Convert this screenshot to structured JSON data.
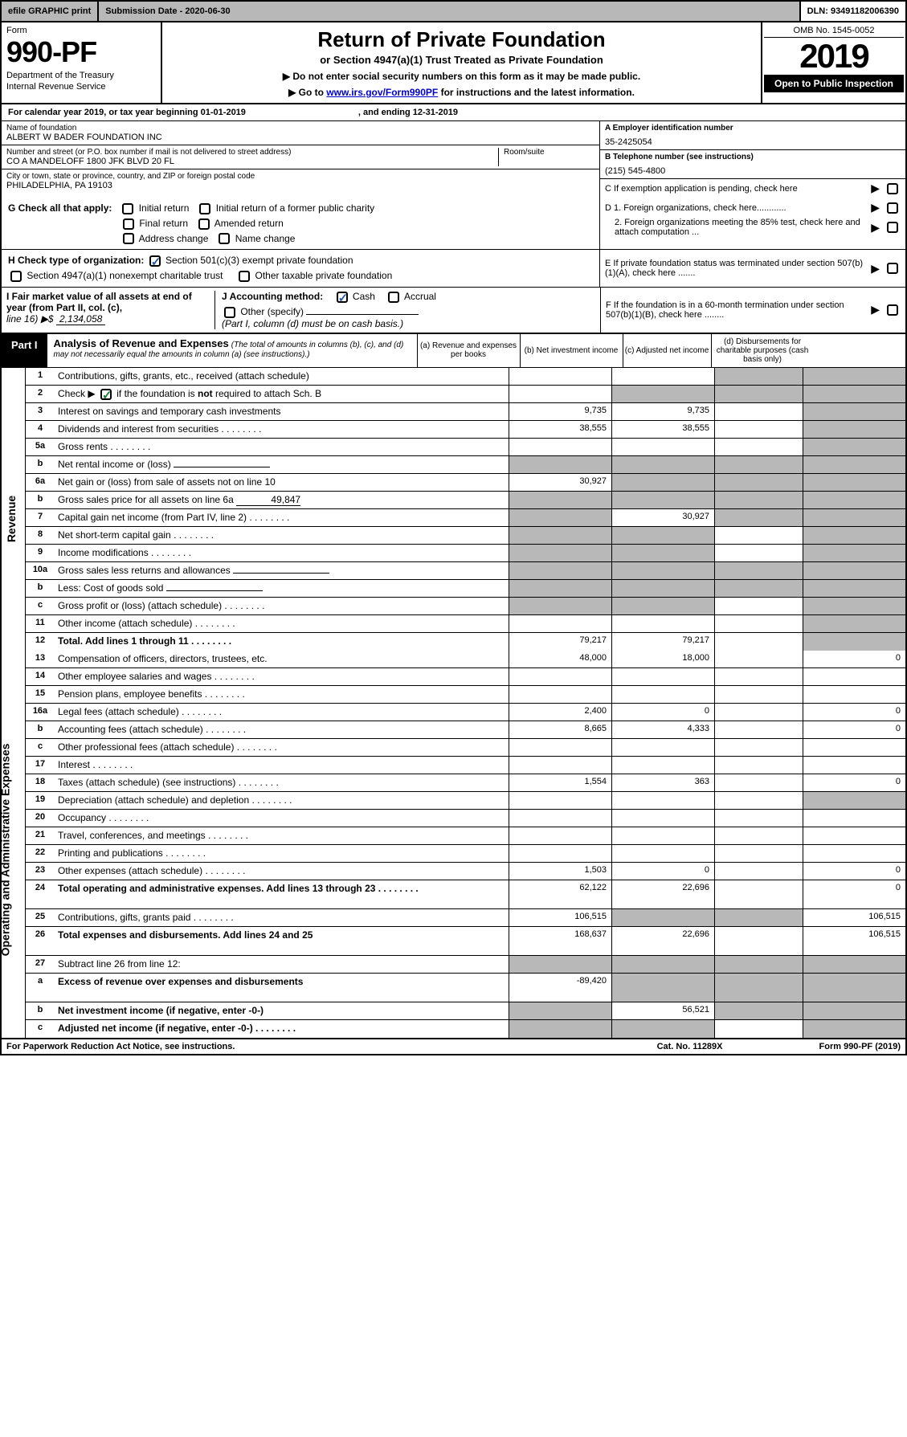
{
  "topbar": {
    "graphic": "efile GRAPHIC print",
    "submission": "Submission Date - 2020-06-30",
    "dln": "DLN: 93491182006390"
  },
  "header": {
    "form_word": "Form",
    "form_number": "990-PF",
    "dept1": "Department of the Treasury",
    "dept2": "Internal Revenue Service",
    "title": "Return of Private Foundation",
    "subtitle": "or Section 4947(a)(1) Trust Treated as Private Foundation",
    "note1": "▶ Do not enter social security numbers on this form as it may be made public.",
    "note2_pre": "▶ Go to ",
    "note2_link": "www.irs.gov/Form990PF",
    "note2_post": " for instructions and the latest information.",
    "omb": "OMB No. 1545-0052",
    "year": "2019",
    "open": "Open to Public Inspection"
  },
  "calendar": {
    "text": "For calendar year 2019, or tax year beginning 01-01-2019",
    "ending": ", and ending 12-31-2019"
  },
  "info": {
    "name_label": "Name of foundation",
    "name": "ALBERT W BADER FOUNDATION INC",
    "addr_label": "Number and street (or P.O. box number if mail is not delivered to street address)",
    "addr": "CO A MANDELOFF 1800 JFK BLVD 20 FL",
    "room_label": "Room/suite",
    "city_label": "City or town, state or province, country, and ZIP or foreign postal code",
    "city": "PHILADELPHIA, PA  19103",
    "a_label": "A Employer identification number",
    "a_val": "35-2425054",
    "b_label": "B Telephone number (see instructions)",
    "b_val": "(215) 545-4800",
    "c_label": "C If exemption application is pending, check here",
    "d1": "D 1. Foreign organizations, check here............",
    "d2": "2. Foreign organizations meeting the 85% test, check here and attach computation ...",
    "e_label": "E  If private foundation status was terminated under section 507(b)(1)(A), check here .......",
    "f_label": "F  If the foundation is in a 60-month termination under section 507(b)(1)(B), check here ........"
  },
  "g": {
    "label": "G Check all that apply:",
    "opt1": "Initial return",
    "opt2": "Initial return of a former public charity",
    "opt3": "Final return",
    "opt4": "Amended return",
    "opt5": "Address change",
    "opt6": "Name change"
  },
  "h": {
    "label": "H Check type of organization:",
    "opt1": "Section 501(c)(3) exempt private foundation",
    "opt2": "Section 4947(a)(1) nonexempt charitable trust",
    "opt3": "Other taxable private foundation"
  },
  "i": {
    "label": "I Fair market value of all assets at end of year (from Part II, col. (c),",
    "line": "line 16) ▶$",
    "val": "2,134,058"
  },
  "j": {
    "label": "J Accounting method:",
    "cash": "Cash",
    "accrual": "Accrual",
    "other": "Other (specify)",
    "note": "(Part I, column (d) must be on cash basis.)"
  },
  "part1": {
    "label": "Part I",
    "title": "Analysis of Revenue and Expenses",
    "desc": "(The total of amounts in columns (b), (c), and (d) may not necessarily equal the amounts in column (a) (see instructions).)",
    "col_a": "(a)    Revenue and expenses per books",
    "col_b": "(b)   Net investment income",
    "col_c": "(c)   Adjusted net income",
    "col_d": "(d)   Disbursements for charitable purposes (cash basis only)"
  },
  "side": {
    "revenue": "Revenue",
    "expenses": "Operating and Administrative Expenses"
  },
  "rows": [
    {
      "n": "1",
      "label": "Contributions, gifts, grants, etc., received (attach schedule)",
      "a": "",
      "b": "",
      "c": "s",
      "d": "s"
    },
    {
      "n": "2",
      "label": "Check ▶ ☑ if the foundation is not required to attach Sch. B",
      "a": "",
      "b": "s",
      "c": "s",
      "d": "s",
      "special": "check"
    },
    {
      "n": "3",
      "label": "Interest on savings and temporary cash investments",
      "a": "9,735",
      "b": "9,735",
      "c": "",
      "d": "s"
    },
    {
      "n": "4",
      "label": "Dividends and interest from securities",
      "a": "38,555",
      "b": "38,555",
      "c": "",
      "d": "s",
      "dots": true
    },
    {
      "n": "5a",
      "label": "Gross rents",
      "a": "",
      "b": "",
      "c": "",
      "d": "s",
      "dots": true
    },
    {
      "n": "b",
      "label": "Net rental income or (loss)",
      "a": "s",
      "b": "s",
      "c": "s",
      "d": "s",
      "inline": true
    },
    {
      "n": "6a",
      "label": "Net gain or (loss) from sale of assets not on line 10",
      "a": "30,927",
      "b": "s",
      "c": "s",
      "d": "s"
    },
    {
      "n": "b",
      "label": "Gross sales price for all assets on line 6a",
      "a": "s",
      "b": "s",
      "c": "s",
      "d": "s",
      "inline_val": "49,847"
    },
    {
      "n": "7",
      "label": "Capital gain net income (from Part IV, line 2)",
      "a": "s",
      "b": "30,927",
      "c": "s",
      "d": "s",
      "dots": true
    },
    {
      "n": "8",
      "label": "Net short-term capital gain",
      "a": "s",
      "b": "s",
      "c": "",
      "d": "s",
      "dots": true
    },
    {
      "n": "9",
      "label": "Income modifications",
      "a": "s",
      "b": "s",
      "c": "",
      "d": "s",
      "dots": true
    },
    {
      "n": "10a",
      "label": "Gross sales less returns and allowances",
      "a": "s",
      "b": "s",
      "c": "s",
      "d": "s",
      "inline": true
    },
    {
      "n": "b",
      "label": "Less: Cost of goods sold",
      "a": "s",
      "b": "s",
      "c": "s",
      "d": "s",
      "inline": true,
      "dots": true
    },
    {
      "n": "c",
      "label": "Gross profit or (loss) (attach schedule)",
      "a": "s",
      "b": "s",
      "c": "",
      "d": "s",
      "dots": true
    },
    {
      "n": "11",
      "label": "Other income (attach schedule)",
      "a": "",
      "b": "",
      "c": "",
      "d": "s",
      "dots": true
    },
    {
      "n": "12",
      "label": "Total. Add lines 1 through 11",
      "a": "79,217",
      "b": "79,217",
      "c": "",
      "d": "s",
      "bold": true,
      "dots": true
    }
  ],
  "exp_rows": [
    {
      "n": "13",
      "label": "Compensation of officers, directors, trustees, etc.",
      "a": "48,000",
      "b": "18,000",
      "c": "",
      "d": "0"
    },
    {
      "n": "14",
      "label": "Other employee salaries and wages",
      "a": "",
      "b": "",
      "c": "",
      "d": "",
      "dots": true
    },
    {
      "n": "15",
      "label": "Pension plans, employee benefits",
      "a": "",
      "b": "",
      "c": "",
      "d": "",
      "dots": true
    },
    {
      "n": "16a",
      "label": "Legal fees (attach schedule)",
      "a": "2,400",
      "b": "0",
      "c": "",
      "d": "0",
      "dots": true
    },
    {
      "n": "b",
      "label": "Accounting fees (attach schedule)",
      "a": "8,665",
      "b": "4,333",
      "c": "",
      "d": "0",
      "dots": true
    },
    {
      "n": "c",
      "label": "Other professional fees (attach schedule)",
      "a": "",
      "b": "",
      "c": "",
      "d": "",
      "dots": true
    },
    {
      "n": "17",
      "label": "Interest",
      "a": "",
      "b": "",
      "c": "",
      "d": "",
      "dots": true
    },
    {
      "n": "18",
      "label": "Taxes (attach schedule) (see instructions)",
      "a": "1,554",
      "b": "363",
      "c": "",
      "d": "0",
      "dots": true
    },
    {
      "n": "19",
      "label": "Depreciation (attach schedule) and depletion",
      "a": "",
      "b": "",
      "c": "",
      "d": "s",
      "dots": true
    },
    {
      "n": "20",
      "label": "Occupancy",
      "a": "",
      "b": "",
      "c": "",
      "d": "",
      "dots": true
    },
    {
      "n": "21",
      "label": "Travel, conferences, and meetings",
      "a": "",
      "b": "",
      "c": "",
      "d": "",
      "dots": true
    },
    {
      "n": "22",
      "label": "Printing and publications",
      "a": "",
      "b": "",
      "c": "",
      "d": "",
      "dots": true
    },
    {
      "n": "23",
      "label": "Other expenses (attach schedule)",
      "a": "1,503",
      "b": "0",
      "c": "",
      "d": "0",
      "dots": true
    },
    {
      "n": "24",
      "label": "Total operating and administrative expenses. Add lines 13 through 23",
      "a": "62,122",
      "b": "22,696",
      "c": "",
      "d": "0",
      "bold": true,
      "dots": true,
      "tall": true
    },
    {
      "n": "25",
      "label": "Contributions, gifts, grants paid",
      "a": "106,515",
      "b": "s",
      "c": "s",
      "d": "106,515",
      "dots": true
    },
    {
      "n": "26",
      "label": "Total expenses and disbursements. Add lines 24 and 25",
      "a": "168,637",
      "b": "22,696",
      "c": "",
      "d": "106,515",
      "bold": true,
      "tall": true
    },
    {
      "n": "27",
      "label": "Subtract line 26 from line 12:",
      "a": "s",
      "b": "s",
      "c": "s",
      "d": "s"
    },
    {
      "n": "a",
      "label": "Excess of revenue over expenses and disbursements",
      "a": "-89,420",
      "b": "s",
      "c": "s",
      "d": "s",
      "bold": true,
      "tall": true
    },
    {
      "n": "b",
      "label": "Net investment income (if negative, enter -0-)",
      "a": "s",
      "b": "56,521",
      "c": "s",
      "d": "s",
      "bold": true
    },
    {
      "n": "c",
      "label": "Adjusted net income (if negative, enter -0-)",
      "a": "s",
      "b": "s",
      "c": "",
      "d": "s",
      "bold": true,
      "dots": true
    }
  ],
  "footer": {
    "left": "For Paperwork Reduction Act Notice, see instructions.",
    "mid": "Cat. No. 11289X",
    "right": "Form 990-PF (2019)"
  }
}
